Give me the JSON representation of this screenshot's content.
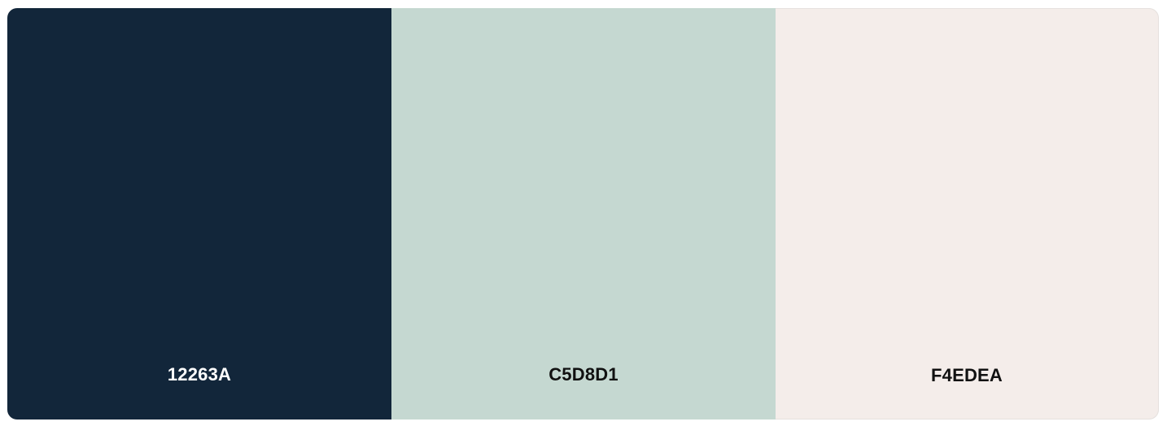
{
  "palette": {
    "swatches": [
      {
        "hex": "12263A",
        "color": "#12263A",
        "text_color": "#FFFFFF"
      },
      {
        "hex": "C5D8D1",
        "color": "#C5D8D1",
        "text_color": "#111111"
      },
      {
        "hex": "F4EDEA",
        "color": "#F4EDEA",
        "text_color": "#111111"
      }
    ]
  }
}
